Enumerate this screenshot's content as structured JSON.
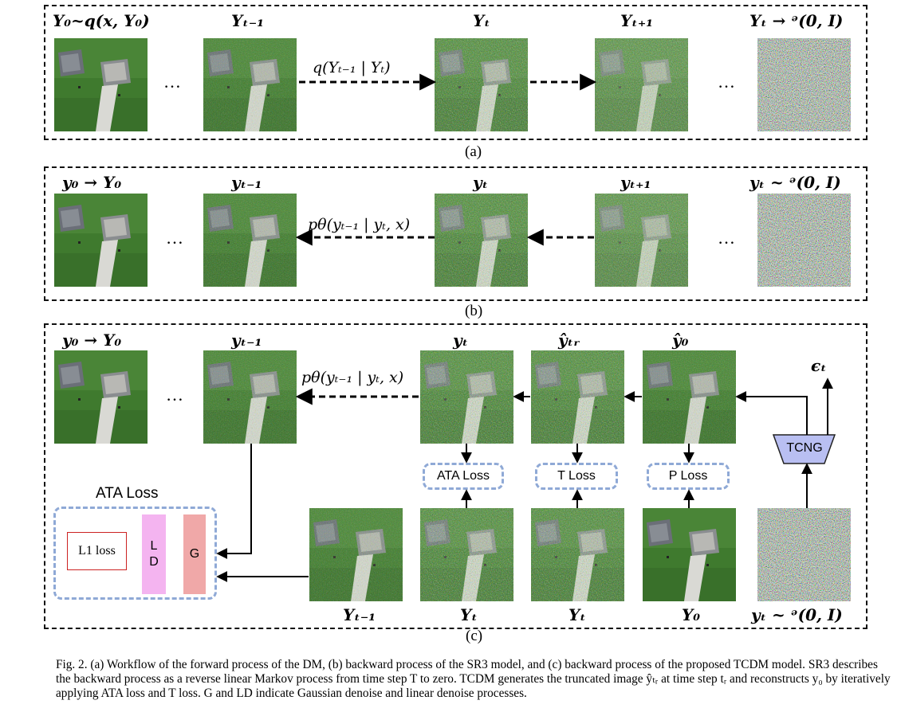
{
  "panel_a": {
    "labels": [
      "Y₀~q(x, Y₀)",
      "Yₜ₋₁",
      "Yₜ",
      "Yₜ₊₁",
      "Yₜ → ᵊ(0, I)"
    ],
    "arrow_label": "q(Yₜ₋₁ | Yₜ)",
    "dots": "…",
    "caption": "(a)"
  },
  "panel_b": {
    "labels": [
      "y₀ → Y₀",
      "yₜ₋₁",
      "yₜ",
      "yₜ₊₁",
      "yₜ ~ ᵊ(0, I)"
    ],
    "arrow_label": "pθ(yₜ₋₁ | yₜ, x)",
    "dots": "…",
    "caption": "(b)"
  },
  "panel_c": {
    "top_labels": [
      "y₀ → Y₀",
      "yₜ₋₁",
      "yₜ",
      "ŷₜᵣ",
      "ŷ₀",
      "ϵₜ"
    ],
    "arrow_label": "pθ(yₜ₋₁ | yₜ, x)",
    "dots": "…",
    "tcng": "TCNG",
    "losses": [
      "ATA Loss",
      "T Loss",
      "P Loss"
    ],
    "ata_loss_title": "ATA Loss",
    "l1_loss": "L1 loss",
    "ld": "L\nD",
    "g": "G",
    "bottom_labels": [
      "Yₜ₋₁",
      "Yₜ",
      "Yₜ",
      "Y₀",
      "yₜ ~ ᵊ(0, I)"
    ],
    "caption": "(c)"
  },
  "figure_caption": "Fig. 2.   (a) Workflow of the forward process of the DM, (b) backward process of the SR3 model, and (c) backward process of the proposed TCDM model. SR3 describes the backward process as a reverse linear Markov process from time step T to zero. TCDM generates the truncated image ŷₜᵣ at time step tᵣ and reconstructs y₀ by iteratively applying ATA loss and T loss. G and LD indicate Gaussian denoise and linear denoise processes.",
  "colors": {
    "dashed_border": "#111111",
    "loss_border": "#8fa9d6",
    "ld_fill": "#f4b4f0",
    "g_fill": "#f0a8a8",
    "tcng_fill": "#b9bff2",
    "l1_border": "#cc2222"
  }
}
